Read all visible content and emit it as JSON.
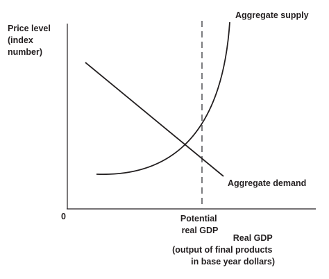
{
  "chart_data": {
    "type": "line",
    "ylabel": [
      "Price level",
      "(index",
      "number)"
    ],
    "xlabel": [
      "Real GDP",
      "(output of final products",
      "in base year dollars)"
    ],
    "origin_label": "0",
    "potential_label": [
      "Potential",
      "real GDP"
    ],
    "series": [
      {
        "name": "Aggregate supply"
      },
      {
        "name": "Aggregate demand"
      }
    ],
    "colors": {
      "curve": "#231f20",
      "dashed": "#6d6e71",
      "axis": "#231f20"
    }
  }
}
